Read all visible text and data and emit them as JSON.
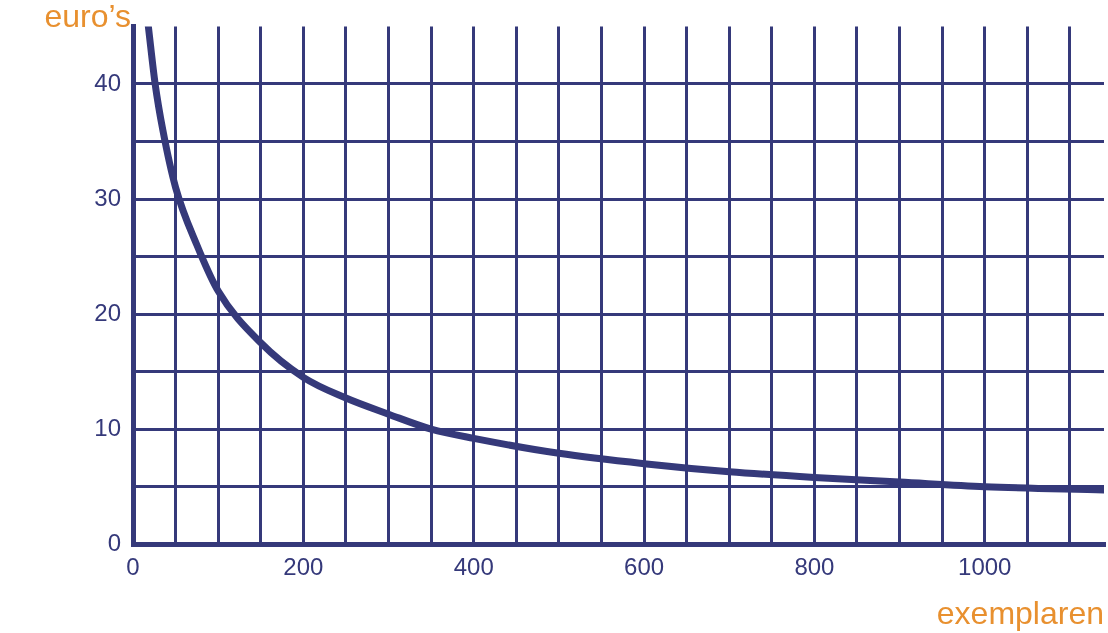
{
  "chart_data": {
    "type": "line",
    "xlabel": "exemplaren",
    "ylabel": "euro’s",
    "x": [
      18,
      26,
      35,
      50,
      75,
      100,
      150,
      200,
      250,
      300,
      350,
      400,
      500,
      600,
      700,
      800,
      900,
      1000,
      1140
    ],
    "series": [
      {
        "color": "#35397a",
        "values": [
          45,
          40,
          36,
          31,
          26,
          22,
          17.5,
          14.5,
          12.7,
          11.3,
          10,
          9.2,
          7.9,
          7,
          6.3,
          5.8,
          5.4,
          5,
          4.7
        ]
      }
    ],
    "xlim": [
      0,
      1140
    ],
    "ylim": [
      0,
      45
    ],
    "xticks": [
      0,
      {
        "value": 50,
        "label": null
      },
      {
        "value": 100,
        "label": null
      },
      {
        "value": 150,
        "label": null
      },
      200,
      {
        "value": 250,
        "label": null
      },
      {
        "value": 300,
        "label": null
      },
      {
        "value": 350,
        "label": null
      },
      400,
      {
        "value": 450,
        "label": null
      },
      {
        "value": 500,
        "label": null
      },
      {
        "value": 550,
        "label": null
      },
      600,
      {
        "value": 650,
        "label": null
      },
      {
        "value": 700,
        "label": null
      },
      {
        "value": 750,
        "label": null
      },
      800,
      {
        "value": 850,
        "label": null
      },
      {
        "value": 900,
        "label": null
      },
      {
        "value": 950,
        "label": null
      },
      1000,
      {
        "value": 1050,
        "label": null
      },
      {
        "value": 1100,
        "label": null
      }
    ],
    "yticks": [
      0,
      {
        "value": 5,
        "label": null
      },
      10,
      {
        "value": 15,
        "label": null
      },
      20,
      {
        "value": 25,
        "label": null
      },
      30,
      {
        "value": 35,
        "label": null
      },
      40
    ],
    "grid": true,
    "legend": false,
    "marker": "none",
    "line_style": "solid"
  }
}
